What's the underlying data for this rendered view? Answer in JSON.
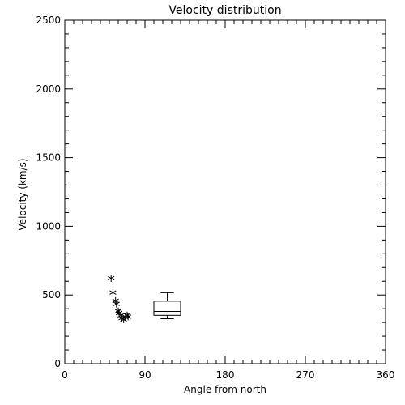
{
  "chart_data": {
    "type": "scatter",
    "title": "Velocity distribution",
    "xlabel": "Angle from north",
    "ylabel": "Velocity (km/s)",
    "xlim": [
      0,
      360
    ],
    "ylim": [
      0,
      2500
    ],
    "xticks": [
      0,
      90,
      180,
      270,
      360
    ],
    "yticks": [
      0,
      500,
      1000,
      1500,
      2000,
      2500
    ],
    "grid": false,
    "points": [
      {
        "x": 52,
        "y": 622
      },
      {
        "x": 54,
        "y": 518
      },
      {
        "x": 57,
        "y": 458
      },
      {
        "x": 58,
        "y": 435
      },
      {
        "x": 60,
        "y": 382
      },
      {
        "x": 61,
        "y": 368
      },
      {
        "x": 63,
        "y": 352
      },
      {
        "x": 64,
        "y": 332
      },
      {
        "x": 66,
        "y": 322
      },
      {
        "x": 68,
        "y": 342
      },
      {
        "x": 70,
        "y": 352
      },
      {
        "x": 71,
        "y": 342
      }
    ],
    "boxplot": {
      "x_center": 115,
      "x_halfwidth": 15,
      "min": 327,
      "q1": 352,
      "median": 380,
      "q3": 455,
      "max": 517
    }
  }
}
